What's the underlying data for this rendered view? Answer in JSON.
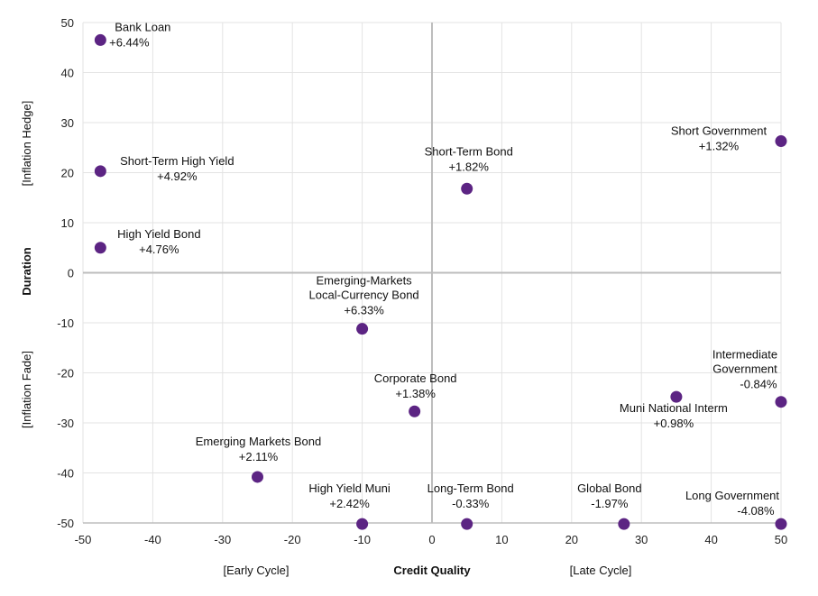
{
  "chart_data": {
    "type": "scatter",
    "xlabel": "Credit Quality",
    "xlabel_left": "[Early Cycle]",
    "xlabel_right": "[Late Cycle]",
    "ylabel": "Duration",
    "ylabel_top": "[Inflation Hedge]",
    "ylabel_bottom": "[Inflation Fade]",
    "xlim": [
      -50,
      50
    ],
    "ylim": [
      -50,
      50
    ],
    "x_ticks": [
      "-50",
      "-40",
      "-30",
      "-20",
      "-10",
      "0",
      "10",
      "20",
      "30",
      "40",
      "50"
    ],
    "y_ticks": [
      "50",
      "40",
      "30",
      "20",
      "10",
      "0",
      "-10",
      "-20",
      "-30",
      "-40",
      "-50"
    ],
    "grid": true,
    "marker_color": "#5c2483",
    "points": [
      {
        "name": "Bank Loan",
        "value": "+6.44%",
        "x": -47.5,
        "y": 46.5
      },
      {
        "name": "Short-Term High Yield",
        "value": "+4.92%",
        "x": -47.5,
        "y": 20.3
      },
      {
        "name": "High Yield Bond",
        "value": "+4.76%",
        "x": -47.5,
        "y": 5.0
      },
      {
        "name": "Short-Term Bond",
        "value": "+1.82%",
        "x": 5.0,
        "y": 16.8
      },
      {
        "name": "Short Government",
        "value": "+1.32%",
        "x": 50.0,
        "y": 26.3
      },
      {
        "name": "Emerging-Markets Local-Currency Bond",
        "lines": [
          "Emerging-Markets",
          "Local-Currency Bond"
        ],
        "value": "+6.33%",
        "x": -10.0,
        "y": -11.2
      },
      {
        "name": "Corporate Bond",
        "value": "+1.38%",
        "x": -2.5,
        "y": -27.7
      },
      {
        "name": "Intermediate Government",
        "lines": [
          "Intermediate",
          "Government"
        ],
        "value": "-0.84%",
        "x": 50.0,
        "y": -25.8
      },
      {
        "name": "Muni National Interm",
        "value": "+0.98%",
        "x": 35.0,
        "y": -24.8
      },
      {
        "name": "Emerging Markets Bond",
        "value": "+2.11%",
        "x": -25.0,
        "y": -40.8
      },
      {
        "name": "High Yield Muni",
        "value": "+2.42%",
        "x": -10.0,
        "y": -50.2
      },
      {
        "name": "Long-Term Bond",
        "value": "-0.33%",
        "x": 5.0,
        "y": -50.2
      },
      {
        "name": "Global Bond",
        "value": "-1.97%",
        "x": 27.5,
        "y": -50.2
      },
      {
        "name": "Long Government",
        "value": "-4.08%",
        "x": 50.0,
        "y": -50.2
      }
    ]
  }
}
